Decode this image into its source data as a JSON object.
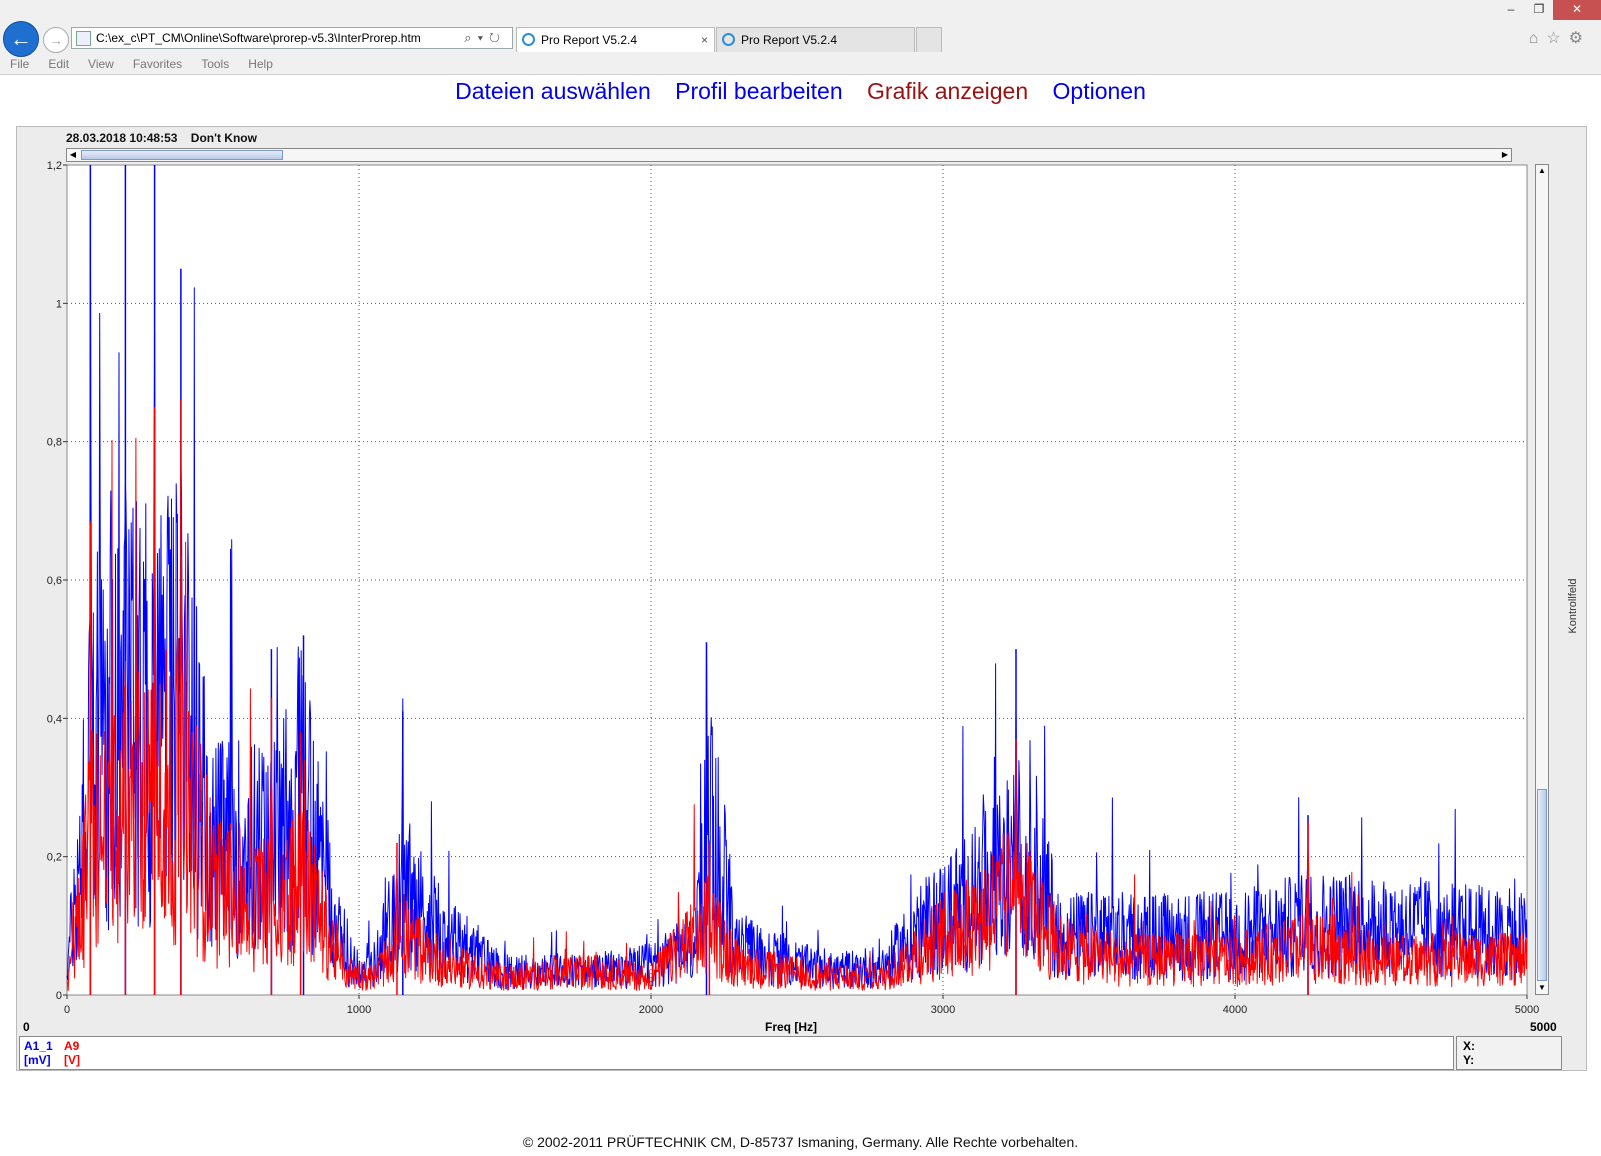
{
  "browser": {
    "address": "C:\\ex_c\\PT_CM\\Online\\Software\\prorep-v5.3\\InterProrep.htm",
    "tabs": [
      {
        "label": "Pro Report V5.2.4",
        "close": "×"
      },
      {
        "label": "Pro Report V5.2.4"
      }
    ],
    "menu": [
      "File",
      "Edit",
      "View",
      "Favorites",
      "Tools",
      "Help"
    ],
    "window_controls": {
      "minimize": "–",
      "restore": "❐",
      "close": "✕"
    },
    "toolbar_icons": [
      "home-icon",
      "star-icon",
      "gear-icon"
    ]
  },
  "nav": {
    "items": [
      {
        "label": "Dateien auswählen",
        "active": false
      },
      {
        "label": "Profil bearbeiten",
        "active": false
      },
      {
        "label": "Grafik anzeigen",
        "active": true
      },
      {
        "label": "Optionen",
        "active": false
      }
    ],
    "link_color": "#0000ee",
    "active_color": "#9b1010"
  },
  "chart_header": {
    "timestamp": "28.03.2018 10:48:53",
    "label": "Don't Know"
  },
  "side_tab": "Kontrollfeld",
  "chart_data": {
    "type": "line",
    "xlabel": "Freq [Hz]",
    "x_range_labels": {
      "min": "0",
      "max": "5000"
    },
    "xlim": [
      0,
      5000
    ],
    "ylim": [
      0,
      1.2
    ],
    "x_ticks": [
      0,
      1000,
      2000,
      3000,
      4000,
      5000
    ],
    "x_tick_labels": [
      "0",
      "1000",
      "2000",
      "3000",
      "4000",
      "5000"
    ],
    "y_ticks": [
      0,
      0.2,
      0.4,
      0.6,
      0.8,
      1,
      1.2
    ],
    "y_tick_labels": [
      "0",
      "0,2",
      "0,4",
      "0,6",
      "0,8",
      "1",
      "1,2"
    ],
    "grid": true,
    "series": [
      {
        "name": "A1_1",
        "unit": "[mV]",
        "color": "#0000ff",
        "peaks": [
          [
            80,
            1.2
          ],
          [
            200,
            1.2
          ],
          [
            300,
            1.2
          ],
          [
            390,
            1.05
          ],
          [
            700,
            0.5
          ],
          [
            810,
            0.52
          ],
          [
            1150,
            0.41
          ],
          [
            2190,
            0.51
          ],
          [
            3250,
            0.5
          ],
          [
            4250,
            0.26
          ]
        ],
        "envelope": [
          [
            0,
            0.05
          ],
          [
            100,
            0.45
          ],
          [
            400,
            0.5
          ],
          [
            500,
            0.25
          ],
          [
            700,
            0.25
          ],
          [
            800,
            0.35
          ],
          [
            950,
            0.06
          ],
          [
            1050,
            0.05
          ],
          [
            1150,
            0.18
          ],
          [
            1300,
            0.1
          ],
          [
            1500,
            0.04
          ],
          [
            1800,
            0.04
          ],
          [
            2000,
            0.05
          ],
          [
            2150,
            0.08
          ],
          [
            2200,
            0.3
          ],
          [
            2300,
            0.08
          ],
          [
            2600,
            0.04
          ],
          [
            2800,
            0.05
          ],
          [
            2900,
            0.1
          ],
          [
            3200,
            0.2
          ],
          [
            3300,
            0.25
          ],
          [
            3400,
            0.1
          ],
          [
            3600,
            0.1
          ],
          [
            4000,
            0.1
          ],
          [
            4250,
            0.12
          ],
          [
            4500,
            0.12
          ],
          [
            5000,
            0.1
          ]
        ]
      },
      {
        "name": "A9",
        "unit": "[V]",
        "color": "#ff0000",
        "peaks": [
          [
            80,
            0.68
          ],
          [
            200,
            0.45
          ],
          [
            300,
            0.85
          ],
          [
            390,
            0.86
          ],
          [
            700,
            0.43
          ],
          [
            800,
            0.38
          ],
          [
            1130,
            0.22
          ],
          [
            2200,
            0.22
          ],
          [
            3250,
            0.37
          ],
          [
            4250,
            0.25
          ]
        ],
        "envelope": [
          [
            0,
            0.02
          ],
          [
            100,
            0.3
          ],
          [
            400,
            0.35
          ],
          [
            500,
            0.18
          ],
          [
            700,
            0.15
          ],
          [
            800,
            0.2
          ],
          [
            950,
            0.04
          ],
          [
            1050,
            0.03
          ],
          [
            1150,
            0.1
          ],
          [
            1300,
            0.05
          ],
          [
            1500,
            0.03
          ],
          [
            1800,
            0.04
          ],
          [
            2000,
            0.03
          ],
          [
            2200,
            0.12
          ],
          [
            2300,
            0.05
          ],
          [
            2600,
            0.03
          ],
          [
            2800,
            0.03
          ],
          [
            2900,
            0.07
          ],
          [
            3250,
            0.17
          ],
          [
            3400,
            0.08
          ],
          [
            3600,
            0.06
          ],
          [
            4000,
            0.06
          ],
          [
            4250,
            0.08
          ],
          [
            4500,
            0.06
          ],
          [
            5000,
            0.06
          ]
        ]
      }
    ]
  },
  "readout": {
    "x_label": "X:",
    "y_label": "Y:"
  },
  "footer": "© 2002-2011 PRÜFTECHNIK CM, D-85737 Ismaning, Germany. Alle Rechte vorbehalten."
}
